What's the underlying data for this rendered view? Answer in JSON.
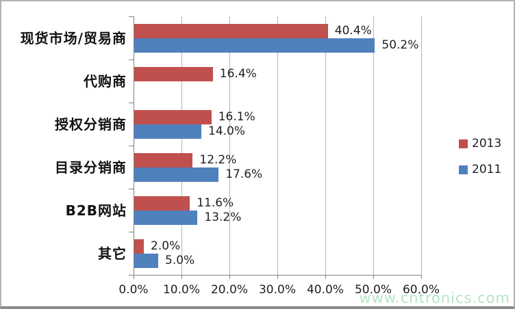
{
  "chart_data": {
    "type": "bar",
    "orientation": "horizontal",
    "title": "",
    "xlabel": "",
    "ylabel": "",
    "categories": [
      "现货市场/贸易商",
      "代购商",
      "授权分销商",
      "目录分销商",
      "B2B网站",
      "其它"
    ],
    "series": [
      {
        "name": "2013",
        "color": "#c0504d",
        "values": [
          40.4,
          16.4,
          16.1,
          12.2,
          11.6,
          2.0
        ]
      },
      {
        "name": "2011",
        "color": "#4f81bd",
        "values": [
          50.2,
          null,
          14.0,
          17.6,
          13.2,
          5.0
        ]
      }
    ],
    "data_label_format": "0.0%",
    "x_ticks": [
      "0.0%",
      "10.0%",
      "20.0%",
      "30.0%",
      "40.0%",
      "50.0%",
      "60.0%"
    ],
    "xlim": [
      0,
      60
    ],
    "grid": "vertical",
    "legend_position": "right"
  },
  "legend": {
    "items": [
      {
        "label": "2013",
        "color": "#c0504d"
      },
      {
        "label": "2011",
        "color": "#4f81bd"
      }
    ]
  },
  "watermark": {
    "text": "www.cntronics.com",
    "color": "#b5e5c8"
  }
}
